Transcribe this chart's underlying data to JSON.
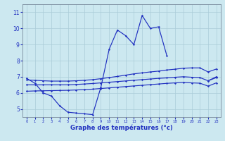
{
  "title": "Graphe des températures (°c)",
  "background_color": "#cce8f0",
  "grid_color": "#aaccd8",
  "line_color": "#2030c0",
  "x_hours": [
    0,
    1,
    2,
    3,
    4,
    5,
    6,
    7,
    8,
    9,
    10,
    11,
    12,
    13,
    14,
    15,
    16,
    17,
    18,
    19,
    20,
    21,
    22,
    23
  ],
  "main_curve_x": [
    0,
    1,
    2,
    3,
    4,
    5,
    6,
    7,
    8,
    9,
    10,
    11,
    12,
    13,
    14,
    15,
    16,
    17
  ],
  "main_curve_y": [
    6.9,
    6.6,
    6.0,
    5.8,
    5.2,
    4.8,
    4.75,
    4.7,
    4.65,
    6.35,
    8.7,
    9.9,
    9.55,
    9.0,
    10.8,
    10.0,
    10.1,
    8.3
  ],
  "upper_line": [
    6.8,
    6.78,
    6.75,
    6.73,
    6.73,
    6.73,
    6.75,
    6.78,
    6.82,
    6.88,
    6.95,
    7.02,
    7.1,
    7.18,
    7.24,
    7.3,
    7.35,
    7.42,
    7.47,
    7.53,
    7.55,
    7.55,
    7.3,
    7.48
  ],
  "mid_line": [
    6.5,
    6.5,
    6.5,
    6.5,
    6.5,
    6.5,
    6.52,
    6.55,
    6.58,
    6.62,
    6.66,
    6.7,
    6.74,
    6.78,
    6.82,
    6.86,
    6.9,
    6.93,
    6.97,
    7.0,
    6.97,
    6.95,
    6.75,
    6.95
  ],
  "low_line": [
    6.1,
    6.12,
    6.13,
    6.14,
    6.15,
    6.16,
    6.18,
    6.2,
    6.23,
    6.27,
    6.31,
    6.35,
    6.39,
    6.43,
    6.47,
    6.51,
    6.55,
    6.59,
    6.62,
    6.65,
    6.62,
    6.6,
    6.42,
    6.62
  ],
  "end_curve_x": [
    18,
    19,
    20,
    21,
    22,
    23
  ],
  "end_curve_y": [
    null,
    null,
    null,
    null,
    6.75,
    7.0
  ],
  "xlim": [
    -0.5,
    23.5
  ],
  "ylim": [
    4.5,
    11.5
  ],
  "yticks": [
    5,
    6,
    7,
    8,
    9,
    10,
    11
  ],
  "xticks": [
    0,
    1,
    2,
    3,
    4,
    5,
    6,
    7,
    8,
    9,
    10,
    11,
    12,
    13,
    14,
    15,
    16,
    17,
    18,
    19,
    20,
    21,
    22,
    23
  ]
}
